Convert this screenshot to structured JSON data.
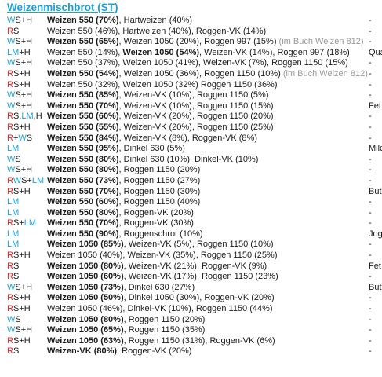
{
  "title": "Weizenmischbrot (ST)",
  "rows": [
    {
      "code": [
        [
          "W",
          "W"
        ],
        [
          "H",
          "S+H"
        ]
      ],
      "desc": [
        [
          "b",
          "Weizen 550 (70%)"
        ],
        [
          "n",
          ", Hartweizen (40%)"
        ]
      ],
      "note": "-"
    },
    {
      "code": [
        [
          "R",
          "R"
        ],
        [
          "H",
          "S"
        ]
      ],
      "desc": [
        [
          "n",
          "Weizen 550 (46%), Hartweizen (40%), Roggen-VK (14%)"
        ]
      ],
      "note": "-"
    },
    {
      "code": [
        [
          "W",
          "W"
        ],
        [
          "H",
          "S+H"
        ]
      ],
      "desc": [
        [
          "b",
          "Weizen 550 (65%)"
        ],
        [
          "n",
          ", Weizen 1050 (20%), Roggen 997 (15%)"
        ],
        [
          "g",
          " (im Buch Weizen 812)"
        ]
      ],
      "note": "-"
    },
    {
      "code": [
        [
          "W",
          "LM"
        ],
        [
          "H",
          "+H"
        ]
      ],
      "desc": [
        [
          "n",
          "Weizen 550 (14%), "
        ],
        [
          "b",
          "Weizen 1050 (54%)"
        ],
        [
          "n",
          ", Weizen-VK (14%), Roggen 997 (18%)"
        ]
      ],
      "note": "Qua"
    },
    {
      "code": [
        [
          "W",
          "W"
        ],
        [
          "H",
          "S+H"
        ]
      ],
      "desc": [
        [
          "n",
          "Weizen 550 (37%), Weizen 1050 (41%), Weizen-VK (7%), Roggen 1150 (15%)"
        ]
      ],
      "note": "-"
    },
    {
      "code": [
        [
          "R",
          "R"
        ],
        [
          "H",
          "S+H"
        ]
      ],
      "desc": [
        [
          "b",
          "Weizen 550 (54%)"
        ],
        [
          "n",
          ", Weizen 1050 (36%), Roggen 1150 (10%)"
        ],
        [
          "g",
          " (im Buch Weizen 812)"
        ]
      ],
      "note": "-"
    },
    {
      "code": [
        [
          "R",
          "R"
        ],
        [
          "H",
          "S+H"
        ]
      ],
      "desc": [
        [
          "n",
          "Weizen 550 (32%), Weizen 1050 (32%) Roggen 1150 (36%)"
        ]
      ],
      "note": "-"
    },
    {
      "code": [
        [
          "W",
          "W"
        ],
        [
          "H",
          "S+H"
        ]
      ],
      "desc": [
        [
          "b",
          "Weizen 550 (85%)"
        ],
        [
          "n",
          ", Weizen-VK (10%), Roggen 1150 (5%)"
        ]
      ],
      "note": "-"
    },
    {
      "code": [
        [
          "W",
          "W"
        ],
        [
          "H",
          "S+H"
        ]
      ],
      "desc": [
        [
          "b",
          "Weizen 550 (70%)"
        ],
        [
          "n",
          ", Weizen-VK (10%), Roggen 1150 (15%)"
        ]
      ],
      "note": "Fet"
    },
    {
      "code": [
        [
          "R",
          "R"
        ],
        [
          "H",
          "S,"
        ],
        [
          "W",
          "LM"
        ],
        [
          "H",
          ",H"
        ]
      ],
      "desc": [
        [
          "b",
          "Weizen 550 (60%)"
        ],
        [
          "n",
          ", Weizen-VK (20%), Roggen 1150 (20%)"
        ]
      ],
      "note": "-"
    },
    {
      "code": [
        [
          "R",
          "R"
        ],
        [
          "H",
          "S+H"
        ]
      ],
      "desc": [
        [
          "b",
          "Weizen 550 (55%)"
        ],
        [
          "n",
          ", Weizen-VK (20%), Roggen 1150 (25%)"
        ]
      ],
      "note": "-"
    },
    {
      "code": [
        [
          "R",
          "R"
        ],
        [
          "H",
          "+"
        ],
        [
          "W",
          "W"
        ],
        [
          "H",
          "S"
        ]
      ],
      "desc": [
        [
          "b",
          "Weizen 550 (84%)"
        ],
        [
          "n",
          ", Weizen-VK (8%), Roggen-VK (8%)"
        ]
      ],
      "note": "-"
    },
    {
      "code": [
        [
          "W",
          "LM"
        ]
      ],
      "desc": [
        [
          "b",
          "Weizen 550 (95%)"
        ],
        [
          "n",
          ", Dinkel 630 (5%)"
        ]
      ],
      "note": "Milc"
    },
    {
      "code": [
        [
          "W",
          "W"
        ],
        [
          "H",
          "S"
        ]
      ],
      "desc": [
        [
          "b",
          "Weizen 550 (80%)"
        ],
        [
          "n",
          ", Dinkel 630 (10%), Dinkel-VK (10%)"
        ]
      ],
      "note": "-"
    },
    {
      "code": [
        [
          "W",
          "W"
        ],
        [
          "H",
          "S+H"
        ]
      ],
      "desc": [
        [
          "b",
          "Weizen 550 (80%)"
        ],
        [
          "n",
          ", Roggen 1150 (20%)"
        ]
      ],
      "note": "-"
    },
    {
      "code": [
        [
          "R",
          "R"
        ],
        [
          "W",
          "W"
        ],
        [
          "H",
          "S+"
        ],
        [
          "W",
          "LM"
        ]
      ],
      "desc": [
        [
          "b",
          "Weizen 550 (73%)"
        ],
        [
          "n",
          ", Roggen 1150 (27%)"
        ]
      ],
      "note": "-"
    },
    {
      "code": [
        [
          "R",
          "R"
        ],
        [
          "H",
          "S+H"
        ]
      ],
      "desc": [
        [
          "b",
          "Weizen 550 (70%)"
        ],
        [
          "n",
          ", Roggen 1150 (30%)"
        ]
      ],
      "note": "But"
    },
    {
      "code": [
        [
          "W",
          "LM"
        ]
      ],
      "desc": [
        [
          "b",
          "Weizen 550 (60%)"
        ],
        [
          "n",
          ", Roggen 1150 (40%)"
        ]
      ],
      "note": "-"
    },
    {
      "code": [
        [
          "W",
          "LM"
        ]
      ],
      "desc": [
        [
          "b",
          "Weizen 550 (80%)"
        ],
        [
          "n",
          ", Roggen-VK (20%)"
        ]
      ],
      "note": "-"
    },
    {
      "code": [
        [
          "R",
          "R"
        ],
        [
          "H",
          "S+"
        ],
        [
          "W",
          "LM"
        ]
      ],
      "desc": [
        [
          "b",
          "Weizen 550 (70%)"
        ],
        [
          "n",
          ", Roggen-VK (30%)"
        ]
      ],
      "note": "-"
    },
    {
      "code": [
        [
          "W",
          "LM"
        ]
      ],
      "desc": [
        [
          "b",
          "Weizen 550 (90%)"
        ],
        [
          "n",
          ", Roggenschrot (10%)"
        ]
      ],
      "note": "Jog"
    },
    {
      "code": [
        [
          "W",
          "LM"
        ]
      ],
      "desc": [
        [
          "b",
          "Weizen 1050 (85%)"
        ],
        [
          "n",
          ", Weizen-VK (5%), Roggen 1150 (10%)"
        ]
      ],
      "note": "-"
    },
    {
      "code": [
        [
          "R",
          "R"
        ],
        [
          "H",
          "S+H"
        ]
      ],
      "desc": [
        [
          "n",
          "Weizen 1050 (40%), Weizen-VK (35%), Roggen 1150 (25%)"
        ]
      ],
      "note": "-"
    },
    {
      "code": [
        [
          "R",
          "R"
        ],
        [
          "H",
          "S"
        ]
      ],
      "desc": [
        [
          "b",
          "Weizen 1050 (80%)"
        ],
        [
          "n",
          ", Weizen-VK (21%), Roggen-VK (9%)"
        ]
      ],
      "note": "Fet"
    },
    {
      "code": [
        [
          "R",
          "R"
        ],
        [
          "H",
          "S"
        ]
      ],
      "desc": [
        [
          "b",
          "Weizen 1050 (60%)"
        ],
        [
          "n",
          ", Weizen-VK (17%), Roggen 1150 (23%)"
        ]
      ],
      "note": "-"
    },
    {
      "code": [
        [
          "W",
          "W"
        ],
        [
          "H",
          "S+H"
        ]
      ],
      "desc": [
        [
          "b",
          "Weizen 1050 (73%)"
        ],
        [
          "n",
          ", Dinkel 630 (27%)"
        ]
      ],
      "note": "But"
    },
    {
      "code": [
        [
          "R",
          "R"
        ],
        [
          "H",
          "S+H"
        ]
      ],
      "desc": [
        [
          "b",
          "Weizen 1050 (50%)"
        ],
        [
          "n",
          ", Dinkel 1050 (30%), Roggen-VK (20%)"
        ]
      ],
      "note": "-"
    },
    {
      "code": [
        [
          "R",
          "R"
        ],
        [
          "H",
          "S+H"
        ]
      ],
      "desc": [
        [
          "n",
          "Weizen 1050 (46%), Dinkel-VK (10%), Roggen 1150 (44%)"
        ]
      ],
      "note": "-"
    },
    {
      "code": [
        [
          "W",
          "W"
        ],
        [
          "H",
          "S"
        ]
      ],
      "desc": [
        [
          "b",
          "Weizen 1050 (80%)"
        ],
        [
          "n",
          ", Roggen 1150 (20%)"
        ]
      ],
      "note": "-"
    },
    {
      "code": [
        [
          "W",
          "W"
        ],
        [
          "H",
          "S+H"
        ]
      ],
      "desc": [
        [
          "b",
          "Weizen 1050 (65%)"
        ],
        [
          "n",
          ", Roggen 1150 (35%)"
        ]
      ],
      "note": "-"
    },
    {
      "code": [
        [
          "R",
          "R"
        ],
        [
          "H",
          "S+H"
        ]
      ],
      "desc": [
        [
          "b",
          "Weizen 1050 (63%)"
        ],
        [
          "n",
          ", Roggen 1150 (31%), Roggen-VK (6%)"
        ]
      ],
      "note": "-"
    },
    {
      "code": [
        [
          "R",
          "R"
        ],
        [
          "H",
          "S"
        ]
      ],
      "desc": [
        [
          "b",
          "Weizen-VK (80%)"
        ],
        [
          "n",
          ", Roggen-VK (20%)"
        ]
      ],
      "note": "-"
    }
  ],
  "colors": {
    "code_red": "#e0242a",
    "code_blue": "#1ea0d8",
    "title": "#1ea0d8",
    "text": "#1a1a1a",
    "note_gray": "#9a9a9a"
  }
}
